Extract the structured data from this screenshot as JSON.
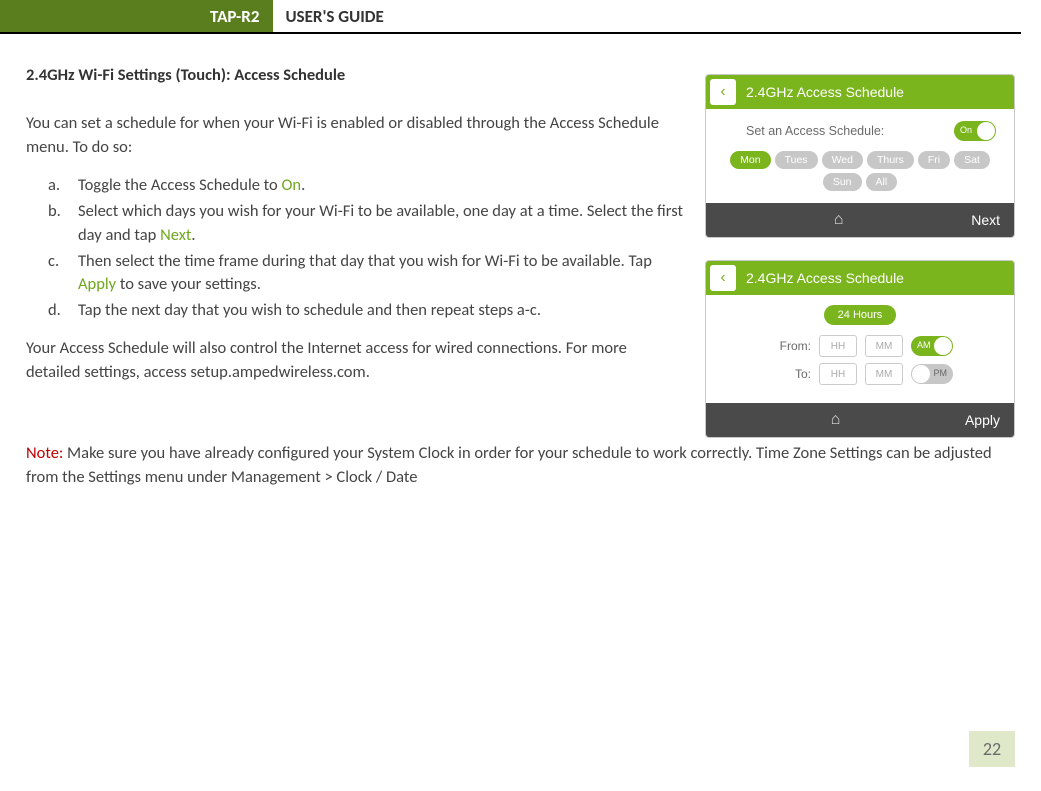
{
  "header": {
    "badge": "TAP-R2",
    "title": "USER'S GUIDE"
  },
  "section_title": "2.4GHz Wi-Fi Settings (Touch): Access Schedule",
  "intro": "You can set a schedule for when your Wi-Fi is enabled or disabled through the Access Schedule menu. To do so:",
  "steps": {
    "a": {
      "marker": "a.",
      "pre": "Toggle the Access Schedule to ",
      "hl": "On",
      "post": "."
    },
    "b": {
      "marker": "b.",
      "pre": "Select which days you wish for your Wi-Fi to be available, one day at a time. Select the first day and tap ",
      "hl": "Next",
      "post": "."
    },
    "c": {
      "marker": "c.",
      "pre": "Then select the time frame during that day that you wish for Wi-Fi to be available. Tap ",
      "hl": "Apply",
      "post": " to save your settings."
    },
    "d": {
      "marker": "d.",
      "text": "Tap the next day that you wish to schedule and then repeat steps a-c."
    }
  },
  "para2": "Your Access Schedule will also control the Internet access for wired connections. For more detailed settings, access setup.ampedwireless.com.",
  "note_label": "Note:",
  "note_text": "  Make sure you have already configured your System Clock in order for your schedule to work correctly. Time Zone Settings can be adjusted from the Settings menu under Management > Clock / Date",
  "screen1": {
    "title": "2.4GHz Access Schedule",
    "set_label": "Set an Access Schedule:",
    "toggle_state": "On",
    "days": [
      {
        "label": "Mon",
        "active": true
      },
      {
        "label": "Tues",
        "active": false
      },
      {
        "label": "Wed",
        "active": false
      },
      {
        "label": "Thurs",
        "active": false
      },
      {
        "label": "Fri",
        "active": false
      },
      {
        "label": "Sat",
        "active": false
      },
      {
        "label": "Sun",
        "active": false
      },
      {
        "label": "All",
        "active": false
      }
    ],
    "next": "Next"
  },
  "screen2": {
    "title": "2.4GHz Access Schedule",
    "btn24": "24 Hours",
    "from_label": "From:",
    "to_label": "To:",
    "hh": "HH",
    "mm": "MM",
    "am": "AM",
    "pm": "PM",
    "apply": "Apply"
  },
  "page_number": "22",
  "colors": {
    "olive": "#5a7d1e",
    "bright_green": "#7ab51d",
    "red": "#c00000",
    "dark_bar": "#4a4a4a",
    "pagebox": "#dfe8c9"
  }
}
